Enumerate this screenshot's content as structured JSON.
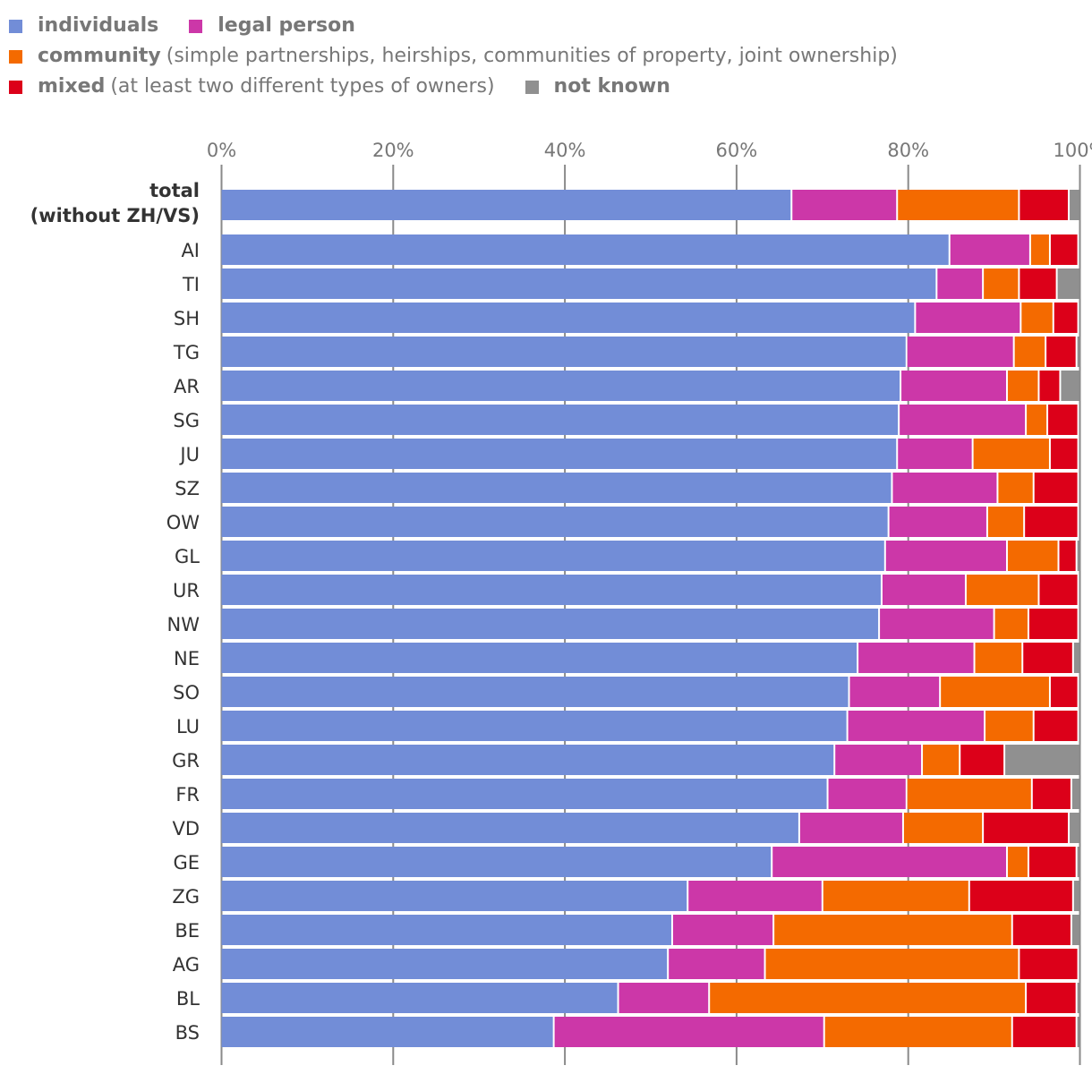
{
  "chart_data": {
    "type": "bar",
    "orientation": "horizontal",
    "stacked": true,
    "title": "",
    "xlabel": "",
    "ylabel": "",
    "xlim": [
      0,
      100
    ],
    "x_ticks": [
      "0%",
      "20%",
      "40%",
      "60%",
      "80%",
      "100%"
    ],
    "x_tick_values": [
      0,
      20,
      40,
      60,
      80,
      100
    ],
    "grid": true,
    "legend_position": "top-left",
    "legend": [
      {
        "key": "individuals",
        "name": "individuals",
        "desc": "",
        "color": "#728dd7"
      },
      {
        "key": "legal",
        "name": "legal person",
        "desc": "",
        "color": "#cc37a8"
      },
      {
        "key": "community",
        "name": "community",
        "desc": "(simple partnerships, heirships, communities of property, joint ownership)",
        "color": "#f46a00"
      },
      {
        "key": "mixed",
        "name": "mixed",
        "desc": "(at least two different types of owners)",
        "color": "#dc0019"
      },
      {
        "key": "not_known",
        "name": "not known",
        "desc": "",
        "color": "#909090"
      }
    ],
    "categories": [
      "total (without ZH/VS)",
      "AI",
      "TI",
      "SH",
      "TG",
      "AR",
      "SG",
      "JU",
      "SZ",
      "OW",
      "GL",
      "UR",
      "NW",
      "NE",
      "SO",
      "LU",
      "GR",
      "FR",
      "VD",
      "GE",
      "ZG",
      "BE",
      "AG",
      "BL",
      "BS"
    ],
    "category_lines": [
      [
        "total",
        "(without ZH/VS)"
      ]
    ],
    "series": [
      {
        "name": "individuals",
        "color": "#728dd7",
        "values": [
          66.4,
          84.8,
          83.3,
          80.8,
          79.8,
          79.1,
          78.9,
          78.7,
          78.1,
          77.7,
          77.3,
          76.9,
          76.6,
          74.1,
          73.1,
          72.9,
          71.4,
          70.6,
          67.3,
          64.1,
          54.3,
          52.5,
          52.0,
          46.2,
          38.7
        ]
      },
      {
        "name": "legal person",
        "color": "#cc37a8",
        "values": [
          12.3,
          9.4,
          5.4,
          12.3,
          12.5,
          12.4,
          14.8,
          8.8,
          12.3,
          11.5,
          14.2,
          9.8,
          13.4,
          13.6,
          10.6,
          16.0,
          10.2,
          9.2,
          12.1,
          27.4,
          15.7,
          11.8,
          11.3,
          10.6,
          31.5
        ]
      },
      {
        "name": "community",
        "color": "#f46a00",
        "values": [
          14.2,
          2.3,
          4.2,
          3.8,
          3.7,
          3.7,
          2.5,
          9.0,
          4.2,
          4.3,
          6.0,
          8.5,
          4.0,
          5.6,
          12.8,
          5.7,
          4.4,
          14.6,
          9.3,
          2.5,
          17.1,
          27.8,
          29.6,
          36.9,
          21.9
        ]
      },
      {
        "name": "mixed",
        "color": "#dc0019",
        "values": [
          5.8,
          3.3,
          4.4,
          2.9,
          3.6,
          2.5,
          3.6,
          3.3,
          5.2,
          6.3,
          2.1,
          4.6,
          5.8,
          5.9,
          3.3,
          5.2,
          5.2,
          4.6,
          10.0,
          5.6,
          12.1,
          6.9,
          6.9,
          5.9,
          7.5
        ]
      },
      {
        "name": "not known",
        "color": "#909090",
        "values": [
          1.3,
          0.2,
          2.7,
          0.2,
          0.4,
          2.3,
          0.2,
          0.2,
          0.2,
          0.2,
          0.4,
          0.2,
          0.2,
          0.8,
          0.2,
          0.2,
          8.8,
          1.0,
          1.3,
          0.4,
          0.8,
          1.0,
          0.2,
          0.4,
          0.4
        ]
      }
    ]
  }
}
